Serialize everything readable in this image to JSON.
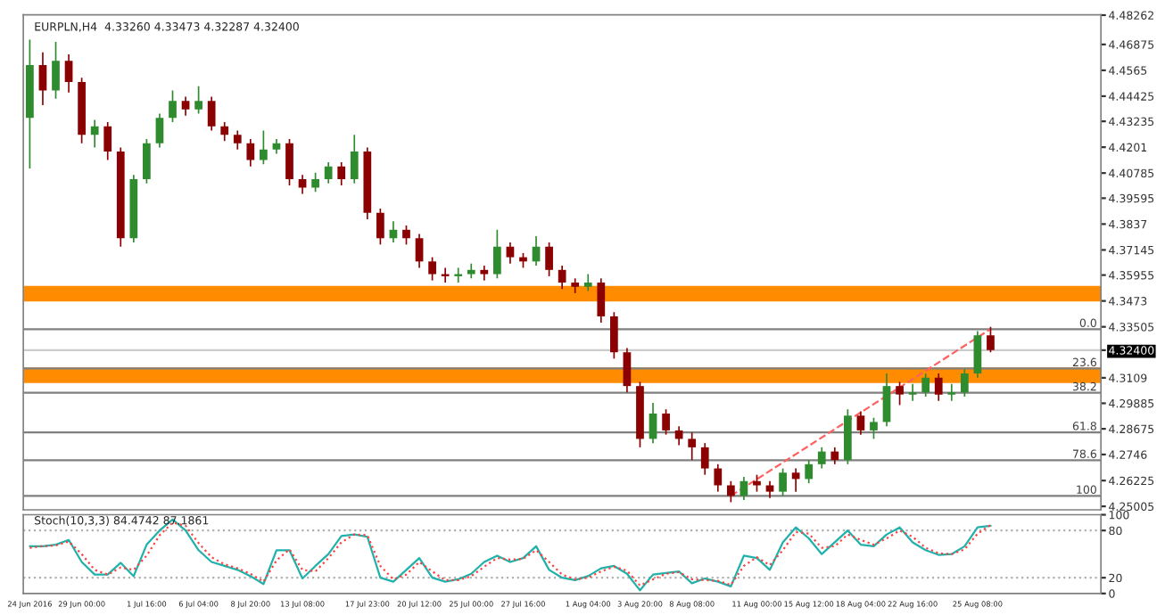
{
  "chart_data": [
    {
      "type": "candlestick",
      "title": "EURPLN,H4  4.33260 4.33473 4.32287 4.32400",
      "categories": [
        null,
        null,
        null,
        null,
        null,
        null,
        null,
        null,
        null,
        null,
        null,
        null,
        null,
        null,
        null,
        null,
        null,
        null,
        null,
        null,
        null,
        null,
        null,
        null,
        null,
        null,
        null,
        null,
        null,
        null,
        null,
        null,
        null,
        null,
        null,
        null,
        null,
        null,
        null,
        null,
        null,
        null,
        null,
        null,
        null,
        null,
        null,
        null,
        null,
        null,
        null,
        null,
        null,
        null,
        null,
        null,
        null,
        null,
        null,
        null,
        null,
        null,
        null,
        null,
        null,
        null,
        null,
        null,
        null,
        null,
        null,
        null,
        null,
        null,
        null,
        null,
        null,
        null,
        null,
        null,
        null,
        null,
        null
      ],
      "ohlc": [
        [
          4.434,
          4.471,
          4.41,
          4.459
        ],
        [
          4.459,
          4.465,
          4.44,
          4.447
        ],
        [
          4.447,
          4.47,
          4.443,
          4.461
        ],
        [
          4.461,
          4.464,
          4.446,
          4.451
        ],
        [
          4.451,
          4.453,
          4.422,
          4.426
        ],
        [
          4.426,
          4.433,
          4.42,
          4.43
        ],
        [
          4.43,
          4.432,
          4.414,
          4.418
        ],
        [
          4.418,
          4.42,
          4.373,
          4.377
        ],
        [
          4.377,
          4.407,
          4.375,
          4.405
        ],
        [
          4.405,
          4.424,
          4.403,
          4.422
        ],
        [
          4.422,
          4.436,
          4.42,
          4.434
        ],
        [
          4.434,
          4.447,
          4.432,
          4.442
        ],
        [
          4.442,
          4.444,
          4.435,
          4.438
        ],
        [
          4.438,
          4.449,
          4.436,
          4.442
        ],
        [
          4.442,
          4.444,
          4.428,
          4.43
        ],
        [
          4.43,
          4.432,
          4.423,
          4.426
        ],
        [
          4.426,
          4.428,
          4.419,
          4.422
        ],
        [
          4.422,
          4.424,
          4.411,
          4.414
        ],
        [
          4.414,
          4.428,
          4.412,
          4.419
        ],
        [
          4.419,
          4.424,
          4.417,
          4.422
        ],
        [
          4.422,
          4.424,
          4.402,
          4.405
        ],
        [
          4.405,
          4.407,
          4.398,
          4.401
        ],
        [
          4.401,
          4.408,
          4.399,
          4.405
        ],
        [
          4.405,
          4.413,
          4.403,
          4.411
        ],
        [
          4.411,
          4.413,
          4.402,
          4.405
        ],
        [
          4.405,
          4.426,
          4.403,
          4.418
        ],
        [
          4.418,
          4.42,
          4.386,
          4.389
        ],
        [
          4.389,
          4.391,
          4.374,
          4.377
        ],
        [
          4.377,
          4.385,
          4.375,
          4.381
        ],
        [
          4.381,
          4.383,
          4.374,
          4.377
        ],
        [
          4.377,
          4.379,
          4.363,
          4.366
        ],
        [
          4.366,
          4.368,
          4.357,
          4.36
        ],
        [
          4.36,
          4.363,
          4.356,
          4.359
        ],
        [
          4.359,
          4.363,
          4.356,
          4.36
        ],
        [
          4.36,
          4.365,
          4.358,
          4.362
        ],
        [
          4.362,
          4.364,
          4.357,
          4.36
        ],
        [
          4.36,
          4.381,
          4.358,
          4.373
        ],
        [
          4.373,
          4.375,
          4.365,
          4.368
        ],
        [
          4.368,
          4.37,
          4.363,
          4.366
        ],
        [
          4.366,
          4.378,
          4.364,
          4.373
        ],
        [
          4.373,
          4.375,
          4.359,
          4.362
        ],
        [
          4.362,
          4.364,
          4.353,
          4.356
        ],
        [
          4.356,
          4.358,
          4.351,
          4.354
        ],
        [
          4.354,
          4.36,
          4.352,
          4.356
        ],
        [
          4.356,
          4.358,
          4.337,
          4.34
        ],
        [
          4.34,
          4.342,
          4.32,
          4.323
        ],
        [
          4.323,
          4.325,
          4.304,
          4.307
        ],
        [
          4.307,
          4.309,
          4.278,
          4.282
        ],
        [
          4.282,
          4.299,
          4.28,
          4.294
        ],
        [
          4.294,
          4.296,
          4.284,
          4.286
        ],
        [
          4.286,
          4.288,
          4.279,
          4.282
        ],
        [
          4.282,
          4.285,
          4.272,
          4.278
        ],
        [
          4.278,
          4.28,
          4.265,
          4.268
        ],
        [
          4.268,
          4.27,
          4.257,
          4.26
        ],
        [
          4.26,
          4.262,
          4.252,
          4.255
        ],
        [
          4.255,
          4.264,
          4.253,
          4.262
        ],
        [
          4.262,
          4.265,
          4.257,
          4.26
        ],
        [
          4.26,
          4.262,
          4.254,
          4.257
        ],
        [
          4.257,
          4.268,
          4.255,
          4.266
        ],
        [
          4.266,
          4.268,
          4.257,
          4.263
        ],
        [
          4.263,
          4.272,
          4.261,
          4.27
        ],
        [
          4.27,
          4.278,
          4.268,
          4.276
        ],
        [
          4.276,
          4.278,
          4.27,
          4.272
        ],
        [
          4.272,
          4.296,
          4.27,
          4.293
        ],
        [
          4.293,
          4.295,
          4.284,
          4.286
        ],
        [
          4.286,
          4.292,
          4.282,
          4.29
        ],
        [
          4.29,
          4.313,
          4.288,
          4.307
        ],
        [
          4.307,
          4.309,
          4.298,
          4.303
        ],
        [
          4.303,
          4.308,
          4.3,
          4.304
        ],
        [
          4.304,
          4.313,
          4.302,
          4.311
        ],
        [
          4.311,
          4.313,
          4.3,
          4.303
        ],
        [
          4.303,
          4.308,
          4.3,
          4.304
        ],
        [
          4.304,
          4.315,
          4.302,
          4.313
        ],
        [
          4.313,
          4.333,
          4.311,
          4.331
        ],
        [
          4.331,
          4.335,
          4.323,
          4.324
        ],
        null,
        null,
        null,
        null,
        null,
        null,
        null,
        null
      ],
      "series": [
        {
          "type": "line",
          "color": "#ff6060",
          "line_style": "dashed",
          "values": [
            null,
            null,
            null,
            null,
            null,
            null,
            null,
            null,
            null,
            null,
            null,
            null,
            null,
            null,
            null,
            null,
            null,
            null,
            null,
            null,
            null,
            null,
            null,
            null,
            null,
            null,
            null,
            null,
            null,
            null,
            null,
            null,
            null,
            null,
            null,
            null,
            null,
            null,
            null,
            null,
            null,
            null,
            null,
            null,
            null,
            null,
            null,
            null,
            null,
            null,
            null,
            null,
            null,
            null,
            4.255,
            null,
            null,
            null,
            null,
            null,
            null,
            null,
            null,
            null,
            null,
            null,
            null,
            null,
            null,
            null,
            null,
            null,
            null,
            null,
            4.334,
            null,
            null,
            null,
            null,
            null,
            null,
            null,
            null
          ]
        }
      ],
      "ylim": [
        4.2484,
        4.4828
      ],
      "yticks": [
        4.25005,
        4.26225,
        4.2746,
        4.28675,
        4.29885,
        4.3109,
        {
          "value": 4.324,
          "label": "4.32400"
        },
        4.33505,
        4.3473,
        4.35955,
        4.37145,
        4.3837,
        4.39595,
        4.40785,
        4.4201,
        4.43235,
        4.44425,
        4.4565,
        4.46875,
        4.48262
      ],
      "ref_lines": [
        {
          "axis": "y",
          "value": 4.324,
          "label": null,
          "color": "#cccccc"
        },
        {
          "axis": "y",
          "value": 4.3339,
          "color": "#808080"
        },
        {
          "axis": "y",
          "value": 4.3153,
          "color": "#808080"
        },
        {
          "axis": "y",
          "value": 4.3038,
          "color": "#808080"
        },
        {
          "axis": "y",
          "value": 4.2851,
          "color": "#808080"
        },
        {
          "axis": "y",
          "value": 4.2719,
          "color": "#808080"
        },
        {
          "axis": "y",
          "value": 4.255,
          "color": "#808080"
        }
      ],
      "annotations": [
        {
          "text": "0.0",
          "y": 4.3339
        },
        {
          "text": "23.6",
          "y": 4.3153
        },
        {
          "text": "38.2",
          "y": 4.3038
        },
        {
          "text": "61.8",
          "y": 4.2851
        },
        {
          "text": "78.6",
          "y": 4.2719
        },
        {
          "text": "100",
          "y": 4.255
        }
      ],
      "bands": [
        {
          "axis": "y",
          "from": 4.347,
          "to": 4.3544,
          "color": "#ff8c00"
        },
        {
          "axis": "y",
          "from": 4.3084,
          "to": 4.3158,
          "color": "#ff8c00"
        }
      ],
      "tick_labels": "y",
      "grid": false
    },
    {
      "type": "line",
      "title": "Stoch(10,3,3) 84.4742 87.1861",
      "categories": [
        "24 Jun 2016",
        null,
        null,
        null,
        "29 Jun 00:00",
        null,
        null,
        null,
        null,
        "1 Jul 16:00",
        null,
        null,
        null,
        "6 Jul 04:00",
        null,
        null,
        null,
        "8 Jul 20:00",
        null,
        null,
        null,
        "13 Jul 08:00",
        null,
        null,
        null,
        null,
        "17 Jul 23:00",
        null,
        null,
        null,
        "20 Jul 12:00",
        null,
        null,
        null,
        "25 Jul 00:00",
        null,
        null,
        null,
        "27 Jul 16:00",
        null,
        null,
        null,
        null,
        "1 Aug 04:00",
        null,
        null,
        null,
        "3 Aug 20:00",
        null,
        null,
        null,
        "8 Aug 08:00",
        null,
        null,
        null,
        null,
        "11 Aug 00:00",
        null,
        null,
        null,
        "15 Aug 12:00",
        null,
        null,
        null,
        "18 Aug 04:00",
        null,
        null,
        null,
        "22 Aug 16:00",
        null,
        null,
        null,
        null,
        "25 Aug 08:00",
        null,
        null,
        null,
        null,
        null,
        null,
        null,
        null,
        null
      ],
      "series": [
        {
          "color": "#20b2aa",
          "line_style": "solid",
          "values": [
            60,
            60,
            62,
            68,
            40,
            24,
            24,
            39,
            22,
            62,
            80,
            94,
            80,
            55,
            40,
            35,
            30,
            22,
            12,
            55,
            55,
            19,
            35,
            50,
            73,
            75,
            72,
            20,
            15,
            30,
            45,
            20,
            15,
            18,
            25,
            40,
            48,
            40,
            45,
            60,
            30,
            20,
            17,
            22,
            32,
            35,
            25,
            4,
            24,
            26,
            28,
            13,
            19,
            15,
            9,
            48,
            45,
            30,
            65,
            84,
            70,
            50,
            65,
            80,
            62,
            60,
            75,
            84,
            65,
            55,
            49,
            50,
            60,
            84,
            86,
            null,
            null,
            null,
            null,
            null,
            null,
            null,
            null
          ]
        },
        {
          "color": "#ff4040",
          "line_style": "dotted",
          "values": [
            58,
            60,
            61,
            66,
            50,
            30,
            24,
            33,
            30,
            48,
            74,
            90,
            86,
            64,
            46,
            37,
            32,
            25,
            15,
            42,
            56,
            30,
            28,
            45,
            65,
            75,
            74,
            35,
            18,
            24,
            40,
            28,
            17,
            17,
            22,
            34,
            45,
            43,
            44,
            55,
            40,
            24,
            18,
            20,
            28,
            34,
            29,
            10,
            18,
            25,
            27,
            18,
            17,
            16,
            11,
            35,
            46,
            36,
            55,
            78,
            76,
            58,
            60,
            75,
            68,
            62,
            70,
            80,
            72,
            58,
            51,
            50,
            56,
            76,
            87,
            null,
            null,
            null,
            null,
            null,
            null,
            null,
            null
          ]
        }
      ],
      "ylim": [
        0,
        100
      ],
      "yticks": [
        0,
        20,
        80,
        100
      ],
      "ref_lines": [
        {
          "axis": "y",
          "value": 80,
          "label": null,
          "color": "#b0b0b0",
          "line_style": "dotted"
        },
        {
          "axis": "y",
          "value": 20,
          "label": null,
          "color": "#b0b0b0",
          "line_style": "dotted"
        }
      ],
      "grid": false
    }
  ]
}
